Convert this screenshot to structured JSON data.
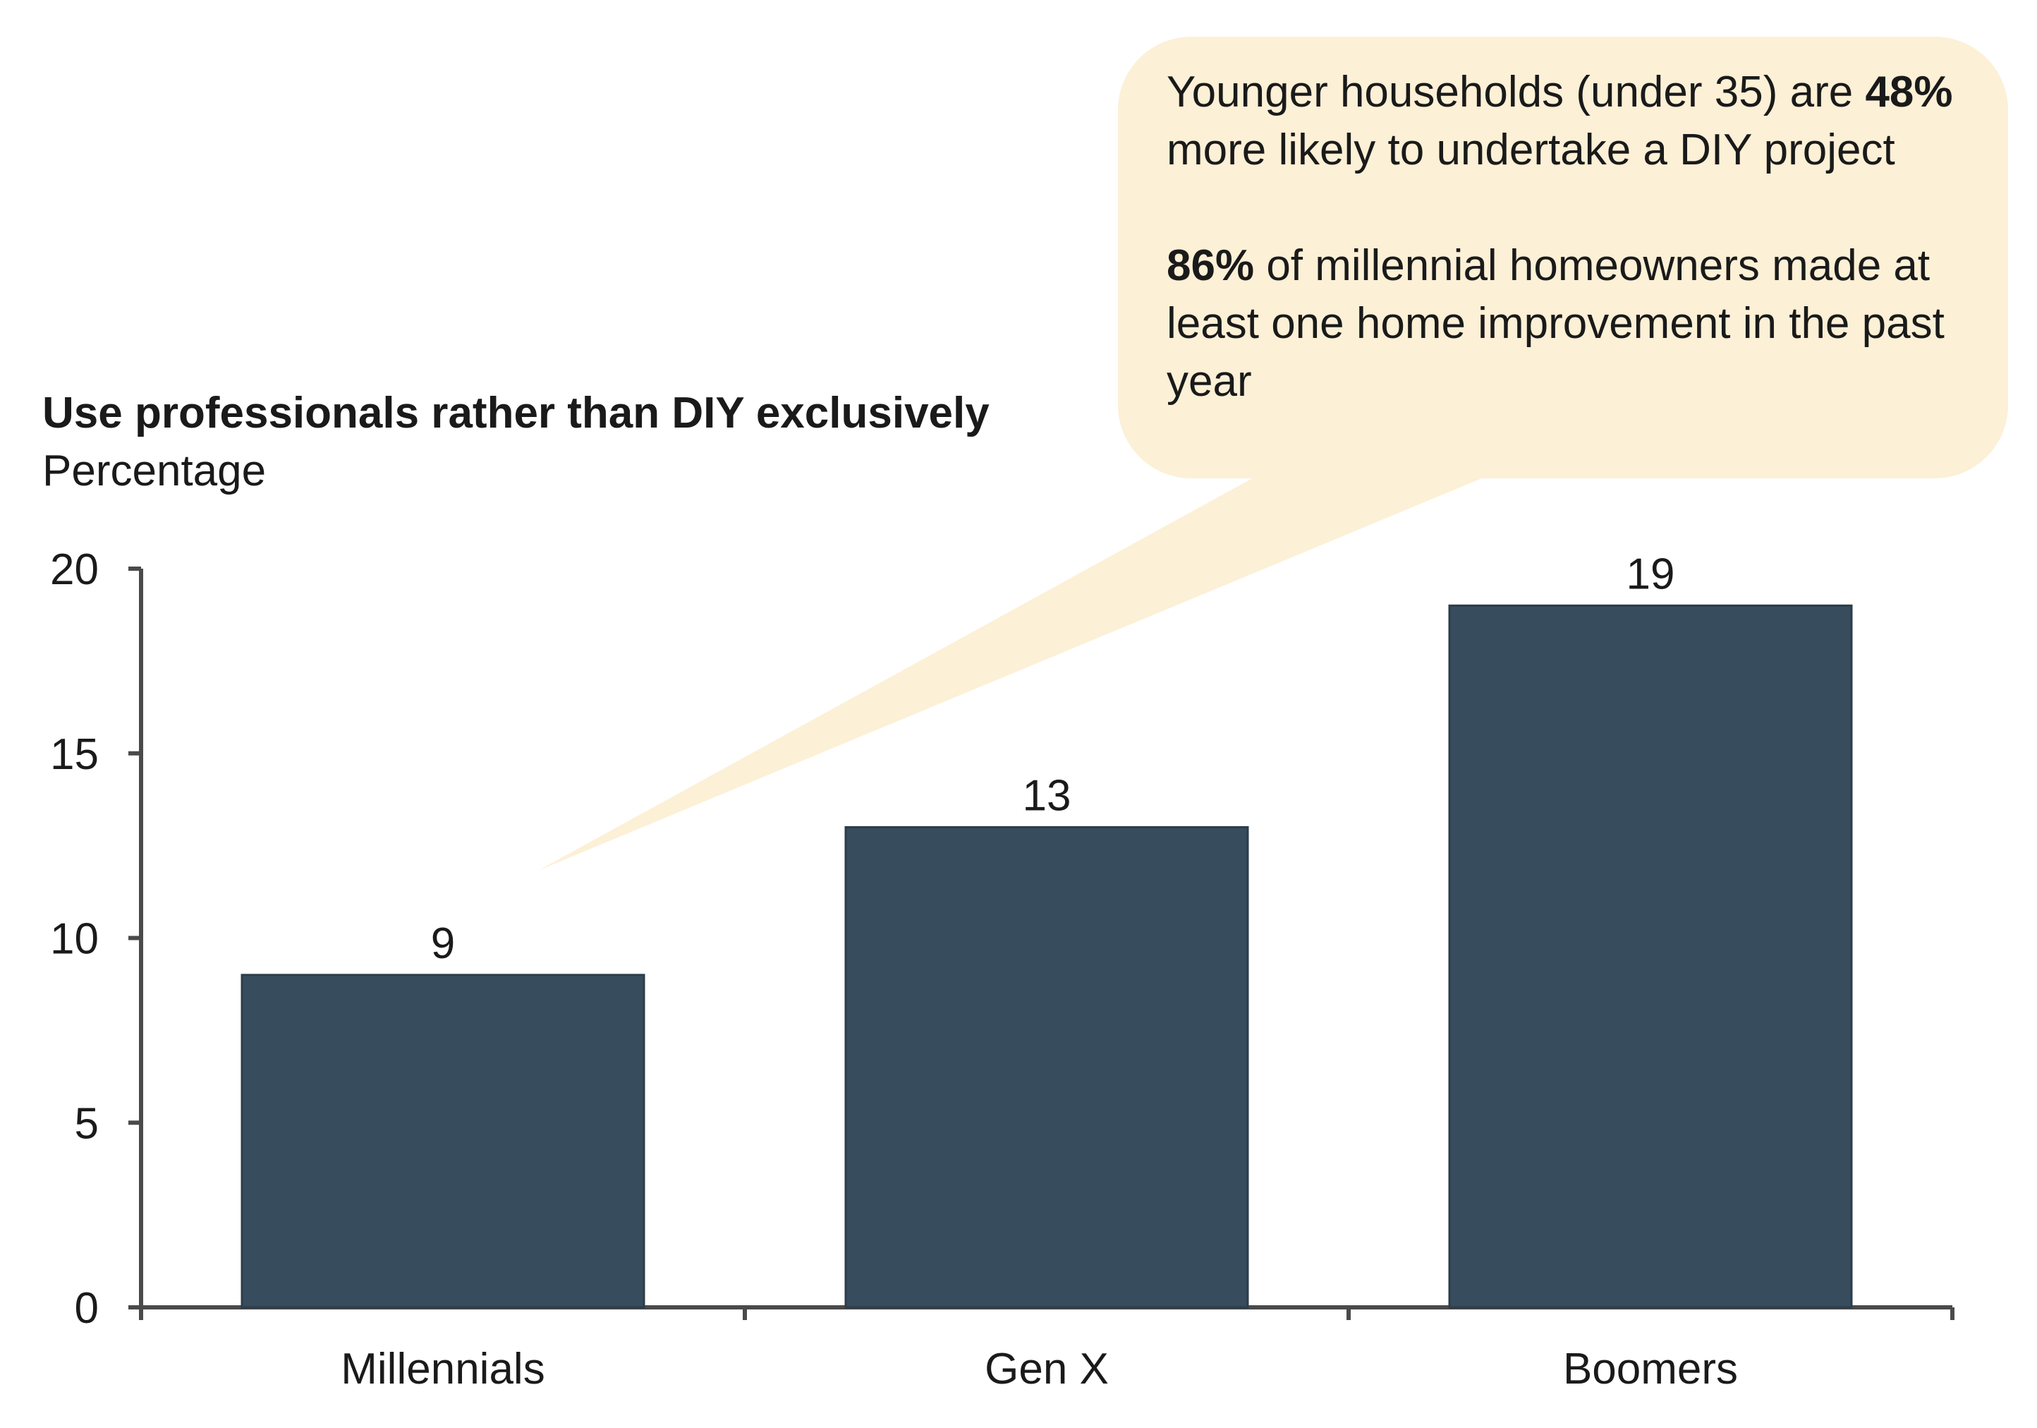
{
  "chart_data": {
    "type": "bar",
    "title": "Use professionals rather than DIY exclusively",
    "subtitle": "Percentage",
    "categories": [
      "Millennials",
      "Gen X",
      "Boomers"
    ],
    "values": [
      9,
      13,
      19
    ],
    "data_labels": [
      "9",
      "13",
      "19"
    ],
    "ylim": [
      0,
      20
    ],
    "yticks": [
      0,
      5,
      10,
      15,
      20
    ],
    "ytick_labels": [
      "0",
      "5",
      "10",
      "15",
      "20"
    ],
    "grid": false,
    "legend": "none",
    "bar_color": "#374c5c",
    "axis_color": "#4a4a4a"
  },
  "callout": {
    "fill_color": "#fcf0d6",
    "points_to": "Millennials",
    "paragraph_1": {
      "before": "Younger households (under 35) are ",
      "bold": "48%",
      "after": " more likely to undertake a DIY project"
    },
    "paragraph_2": {
      "bold": "86%",
      "after": " of millennial homeowners made at least one home improvement in the past year"
    }
  }
}
